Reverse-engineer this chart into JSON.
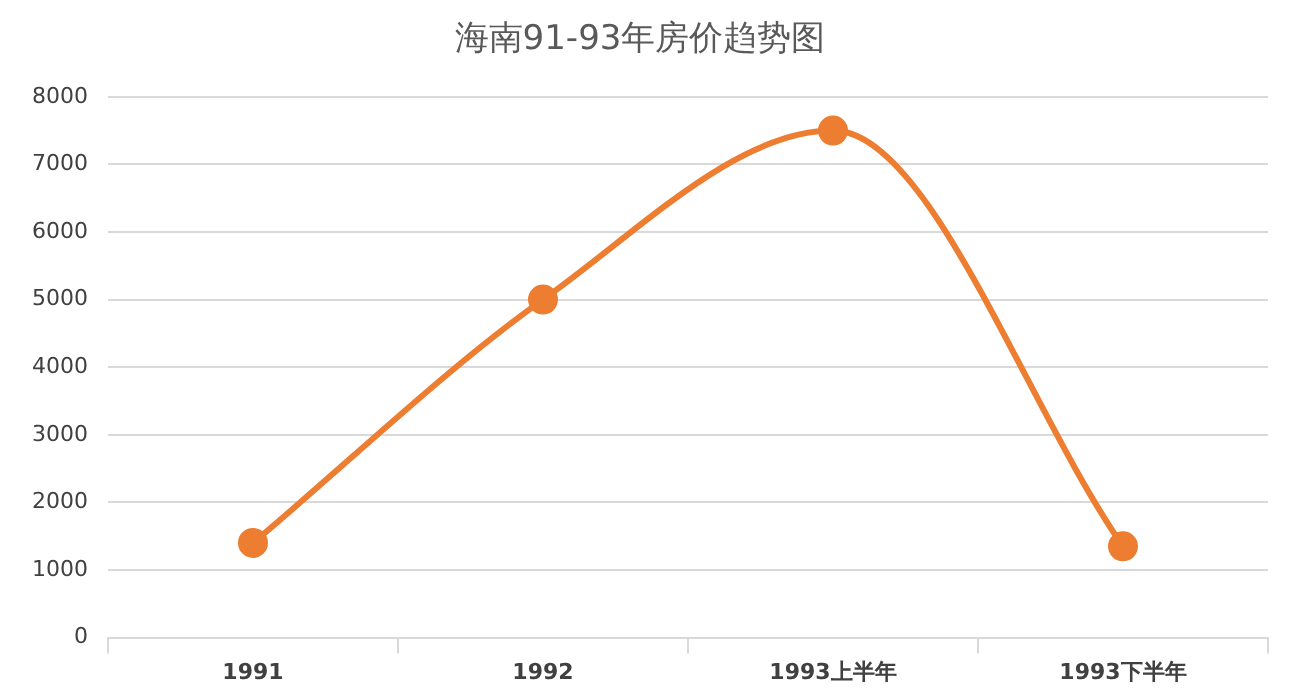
{
  "chart_data": {
    "type": "line",
    "title": "海南91-93年房价趋势图",
    "categories": [
      "1991",
      "1992",
      "1993上半年",
      "1993下半年"
    ],
    "series": [
      {
        "color": "#ed7d31",
        "values": [
          1400,
          5000,
          7500,
          1350
        ]
      }
    ],
    "ylim": [
      0,
      8000
    ],
    "yticks": [
      0,
      1000,
      2000,
      3000,
      4000,
      5000,
      6000,
      7000,
      8000
    ],
    "grid": "y",
    "legend": false,
    "marker": "circle",
    "line_style": "solid"
  }
}
